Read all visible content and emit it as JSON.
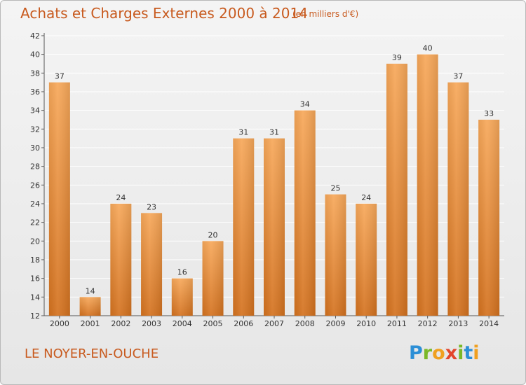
{
  "header": {
    "title": "Achats et Charges Externes 2000 à 2014",
    "subtitle": "(en milliers d'€)"
  },
  "footer": {
    "location": "LE NOYER-EN-OUCHE",
    "brand": "Proxiti"
  },
  "colors": {
    "bar_light": "#f7a85a",
    "bar_dark": "#d4721f",
    "title": "#c85a1e",
    "grid": "#ffffff"
  },
  "chart_data": {
    "type": "bar",
    "title": "Achats et Charges Externes 2000 à 2014",
    "subtitle": "(en milliers d'€)",
    "xlabel": "",
    "ylabel": "",
    "categories": [
      "2000",
      "2001",
      "2002",
      "2003",
      "2004",
      "2005",
      "2006",
      "2007",
      "2008",
      "2009",
      "2010",
      "2011",
      "2012",
      "2013",
      "2014"
    ],
    "values": [
      37,
      14,
      24,
      23,
      16,
      20,
      31,
      31,
      34,
      25,
      24,
      39,
      40,
      37,
      33
    ],
    "ylim": [
      12,
      42
    ],
    "yticks": [
      12,
      14,
      16,
      18,
      20,
      22,
      24,
      26,
      28,
      30,
      32,
      34,
      36,
      38,
      40,
      42
    ],
    "grid": true,
    "legend": "none"
  }
}
